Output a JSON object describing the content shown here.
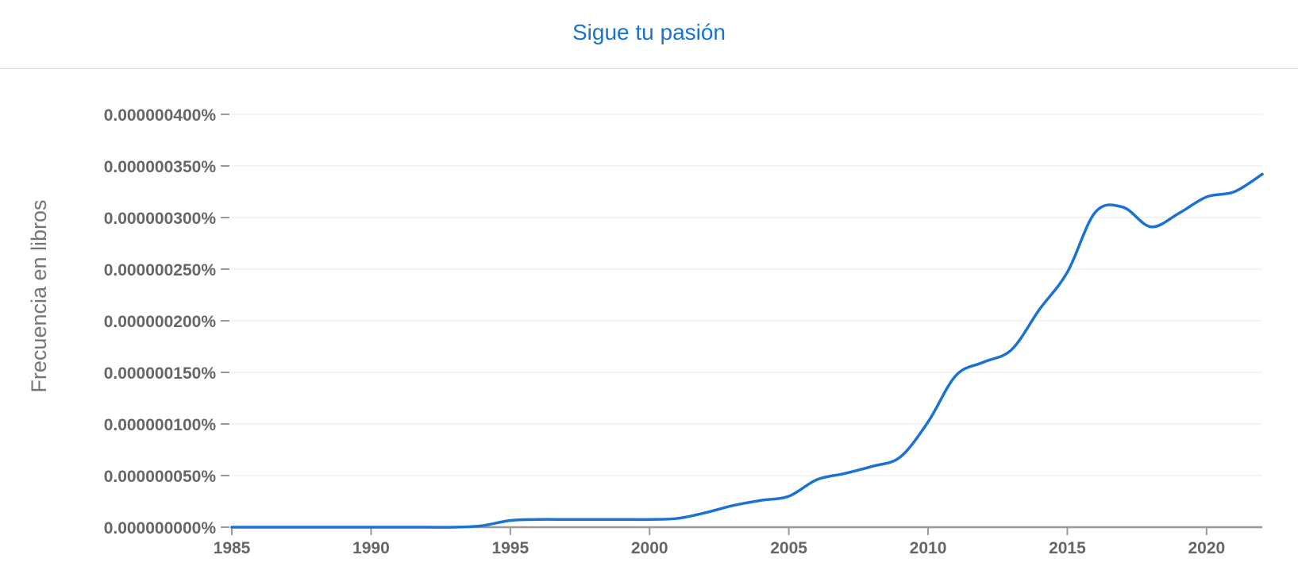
{
  "header": {
    "series_label": "Sigue tu pasión"
  },
  "colors": {
    "series_line": "#1a73d1",
    "gridline": "#f0f0f0",
    "axis": "#999999",
    "tick_text": "#666666"
  },
  "chart_data": {
    "type": "line",
    "title": "",
    "xlabel": "",
    "ylabel": "Frecuencia en libros",
    "xlim": [
      1985,
      2022
    ],
    "ylim": [
      0,
      4e-07
    ],
    "grid": true,
    "x_ticks": [
      1985,
      1990,
      1995,
      2000,
      2005,
      2010,
      2015,
      2020
    ],
    "x_tick_labels": [
      "1985",
      "1990",
      "1995",
      "2000",
      "2005",
      "2010",
      "2015",
      "2020"
    ],
    "y_ticks": [
      0,
      5e-08,
      1e-07,
      1.5e-07,
      2e-07,
      2.5e-07,
      3e-07,
      3.5e-07,
      4e-07
    ],
    "y_tick_labels": [
      "0.000000000%",
      "0.000000050%",
      "0.000000100%",
      "0.000000150%",
      "0.000000200%",
      "0.000000250%",
      "0.000000300%",
      "0.000000350%",
      "0.000000400%"
    ],
    "series": [
      {
        "name": "Sigue tu pasión",
        "x": [
          1985,
          1986,
          1987,
          1988,
          1989,
          1990,
          1991,
          1992,
          1993,
          1994,
          1995,
          1996,
          1997,
          1998,
          1999,
          2000,
          2001,
          2002,
          2003,
          2004,
          2005,
          2006,
          2007,
          2008,
          2009,
          2010,
          2011,
          2012,
          2013,
          2014,
          2015,
          2016,
          2017,
          2018,
          2019,
          2020,
          2021,
          2022
        ],
        "values": [
          0,
          0,
          0,
          0,
          0,
          0,
          0,
          0,
          0,
          1.5e-09,
          6.5e-09,
          7.5e-09,
          7.5e-09,
          7.5e-09,
          7.5e-09,
          7.5e-09,
          8.5e-09,
          1.4e-08,
          2.1e-08,
          2.6e-08,
          3e-08,
          4.6e-08,
          5.2e-08,
          5.9e-08,
          6.8e-08,
          1.02e-07,
          1.47e-07,
          1.6e-07,
          1.72e-07,
          2.11e-07,
          2.47e-07,
          3.05e-07,
          3.1e-07,
          2.91e-07,
          3.04e-07,
          3.2e-07,
          3.25e-07,
          3.42e-07
        ]
      }
    ]
  }
}
